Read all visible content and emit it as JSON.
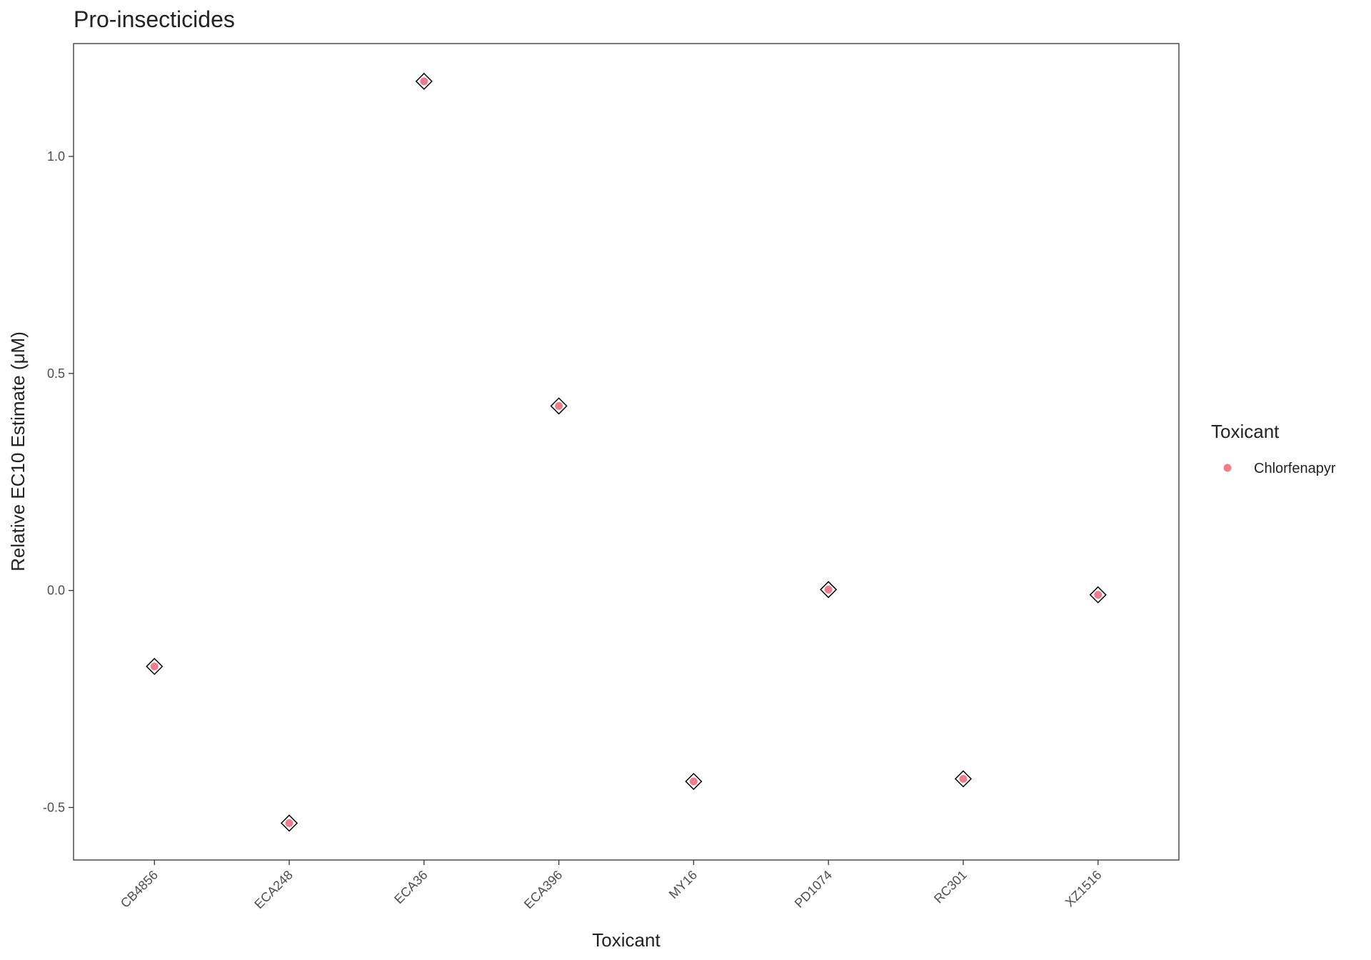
{
  "chart_data": {
    "type": "scatter",
    "title": "Pro-insecticides",
    "x_label": "Toxicant",
    "y_label": "Relative EC10 Estimate (μM)",
    "categories": [
      "CB4856",
      "ECA248",
      "ECA36",
      "ECA396",
      "MY16",
      "PD1074",
      "RC301",
      "XZ1516"
    ],
    "series": [
      {
        "name": "Chlorfenapyr",
        "color": "#ee6f80",
        "values": [
          -0.175,
          -0.536,
          1.173,
          0.425,
          -0.44,
          0.002,
          -0.434,
          -0.01
        ]
      }
    ],
    "legend_title": "Toxicant",
    "ylim": [
      -0.621,
      1.26
    ],
    "yticks": [
      {
        "value": -0.5,
        "label": "-0.5"
      },
      {
        "value": 0,
        "label": "0.0"
      },
      {
        "value": 0.5,
        "label": "0.5"
      },
      {
        "value": 1,
        "label": "1.0"
      }
    ],
    "grid": false,
    "legend_position": "right"
  }
}
